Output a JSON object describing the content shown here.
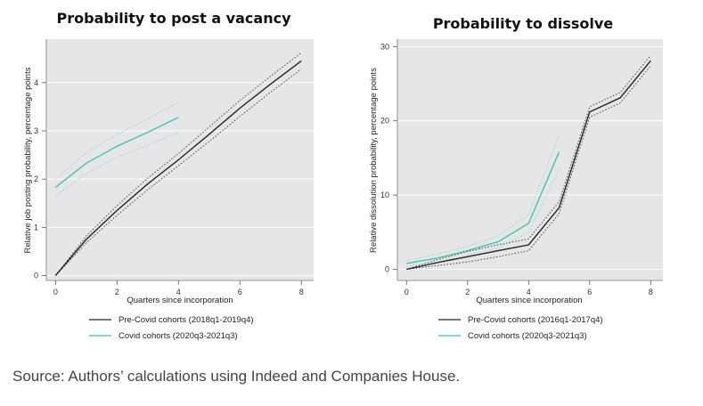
{
  "chart_data": [
    {
      "type": "line",
      "title": "Probability to post a vacancy",
      "xlabel": "Quarters since incorporation",
      "ylabel": "Relative job posting probability, percentage points",
      "xlim": [
        -0.3,
        8.4
      ],
      "ylim": [
        -0.1,
        4.9
      ],
      "xticks": [
        0,
        2,
        4,
        6,
        8
      ],
      "yticks": [
        0,
        1,
        2,
        3,
        4
      ],
      "grid": true,
      "legend_position": "bottom",
      "colors": {
        "pre": "#222222",
        "covid": "#3cc4b4"
      },
      "series": [
        {
          "name": "Pre-Covid cohorts (2018q1-2019q4)",
          "x": [
            0,
            1,
            2,
            3,
            4,
            5,
            6,
            7,
            8
          ],
          "values": [
            0,
            0.75,
            1.35,
            1.9,
            2.4,
            2.93,
            3.47,
            3.97,
            4.45
          ],
          "ci_low": [
            0,
            0.68,
            1.25,
            1.78,
            2.28,
            2.78,
            3.3,
            3.8,
            4.28
          ],
          "ci_high": [
            0,
            0.82,
            1.45,
            2.02,
            2.53,
            3.08,
            3.63,
            4.13,
            4.62
          ]
        },
        {
          "name": "Covid cohorts (2020q3-2021q3)",
          "x": [
            0,
            1,
            2,
            3,
            4
          ],
          "values": [
            1.83,
            2.33,
            2.68,
            2.97,
            3.28
          ],
          "ci_low": [
            1.65,
            2.12,
            2.45,
            2.7,
            2.97
          ],
          "ci_high": [
            2.0,
            2.55,
            2.92,
            3.25,
            3.6
          ]
        }
      ]
    },
    {
      "type": "line",
      "title": "Probability to dissolve",
      "xlabel": "Quarters since incorporation",
      "ylabel": "Relative dissolution probability, percentage points",
      "xlim": [
        -0.3,
        8.4
      ],
      "ylim": [
        -1.5,
        31
      ],
      "xticks": [
        0,
        2,
        4,
        6,
        8
      ],
      "yticks": [
        0,
        10,
        20,
        30
      ],
      "grid": true,
      "legend_position": "bottom",
      "colors": {
        "pre": "#222222",
        "covid": "#3cc4b4"
      },
      "series": [
        {
          "name": "Pre-Covid cohorts (2016q1-2017q4)",
          "x": [
            0,
            1,
            2,
            3,
            4,
            5,
            6,
            7,
            8
          ],
          "values": [
            0,
            0.9,
            1.7,
            2.5,
            3.3,
            8.3,
            21.2,
            23.1,
            28.1
          ],
          "ci_low": [
            0,
            0.5,
            1.0,
            1.7,
            2.5,
            7.5,
            20.5,
            22.4,
            27.4
          ],
          "ci_high": [
            0,
            1.3,
            2.4,
            3.3,
            4.1,
            9.1,
            21.9,
            23.8,
            28.8
          ]
        },
        {
          "name": "Covid cohorts (2020q3-2021q3)",
          "x": [
            0,
            1,
            2,
            3,
            4,
            5
          ],
          "values": [
            0.8,
            1.5,
            2.5,
            3.7,
            6.2,
            15.8
          ],
          "ci_low": [
            0.4,
            1.0,
            1.9,
            2.9,
            5.0,
            13.5
          ],
          "ci_high": [
            1.2,
            2.0,
            3.1,
            4.5,
            7.4,
            18.1
          ]
        }
      ]
    }
  ],
  "source": "Source: Authors’ calculations using Indeed and Companies House."
}
